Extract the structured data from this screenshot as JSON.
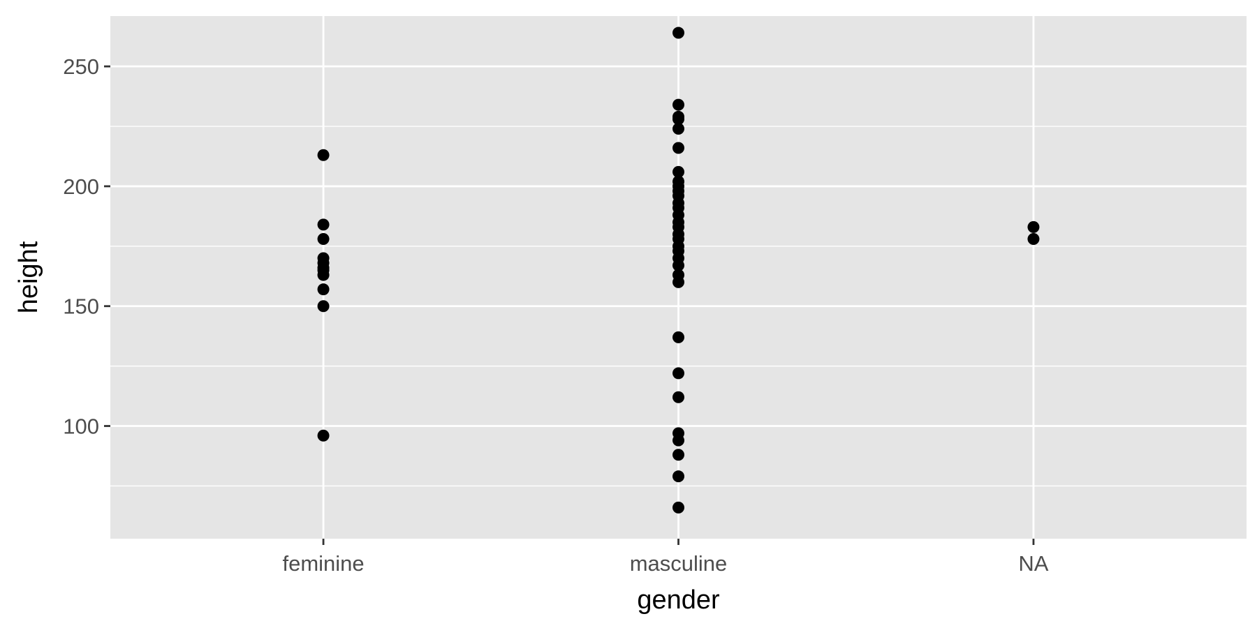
{
  "chart_data": {
    "type": "scatter",
    "title": "",
    "xlabel": "gender",
    "ylabel": "height",
    "categories": [
      "feminine",
      "masculine",
      "NA"
    ],
    "y_ticks": [
      100,
      150,
      200,
      250
    ],
    "y_minor_ticks": [
      75,
      125,
      175,
      225
    ],
    "ylim": [
      53,
      271
    ],
    "grid": true,
    "legend": "none",
    "colors": {
      "panel_background": "#e5e5e5",
      "grid": "#ffffff",
      "point": "#000000",
      "tick_text": "#4d4d4d",
      "axis_tick": "#333333"
    },
    "series": [
      {
        "points": [
          {
            "x": "feminine",
            "y": 213
          },
          {
            "x": "feminine",
            "y": 184
          },
          {
            "x": "feminine",
            "y": 178
          },
          {
            "x": "feminine",
            "y": 170
          },
          {
            "x": "feminine",
            "y": 168
          },
          {
            "x": "feminine",
            "y": 166
          },
          {
            "x": "feminine",
            "y": 165
          },
          {
            "x": "feminine",
            "y": 163
          },
          {
            "x": "feminine",
            "y": 157
          },
          {
            "x": "feminine",
            "y": 150
          },
          {
            "x": "feminine",
            "y": 96
          },
          {
            "x": "masculine",
            "y": 264
          },
          {
            "x": "masculine",
            "y": 234
          },
          {
            "x": "masculine",
            "y": 229
          },
          {
            "x": "masculine",
            "y": 228
          },
          {
            "x": "masculine",
            "y": 224
          },
          {
            "x": "masculine",
            "y": 216
          },
          {
            "x": "masculine",
            "y": 206
          },
          {
            "x": "masculine",
            "y": 202
          },
          {
            "x": "masculine",
            "y": 200
          },
          {
            "x": "masculine",
            "y": 198
          },
          {
            "x": "masculine",
            "y": 196
          },
          {
            "x": "masculine",
            "y": 193
          },
          {
            "x": "masculine",
            "y": 191
          },
          {
            "x": "masculine",
            "y": 188
          },
          {
            "x": "masculine",
            "y": 185
          },
          {
            "x": "masculine",
            "y": 183
          },
          {
            "x": "masculine",
            "y": 180
          },
          {
            "x": "masculine",
            "y": 178
          },
          {
            "x": "masculine",
            "y": 175
          },
          {
            "x": "masculine",
            "y": 173
          },
          {
            "x": "masculine",
            "y": 170
          },
          {
            "x": "masculine",
            "y": 167
          },
          {
            "x": "masculine",
            "y": 163
          },
          {
            "x": "masculine",
            "y": 160
          },
          {
            "x": "masculine",
            "y": 137
          },
          {
            "x": "masculine",
            "y": 122
          },
          {
            "x": "masculine",
            "y": 112
          },
          {
            "x": "masculine",
            "y": 97
          },
          {
            "x": "masculine",
            "y": 94
          },
          {
            "x": "masculine",
            "y": 88
          },
          {
            "x": "masculine",
            "y": 79
          },
          {
            "x": "masculine",
            "y": 66
          },
          {
            "x": "NA",
            "y": 183
          },
          {
            "x": "NA",
            "y": 178
          }
        ]
      }
    ]
  }
}
